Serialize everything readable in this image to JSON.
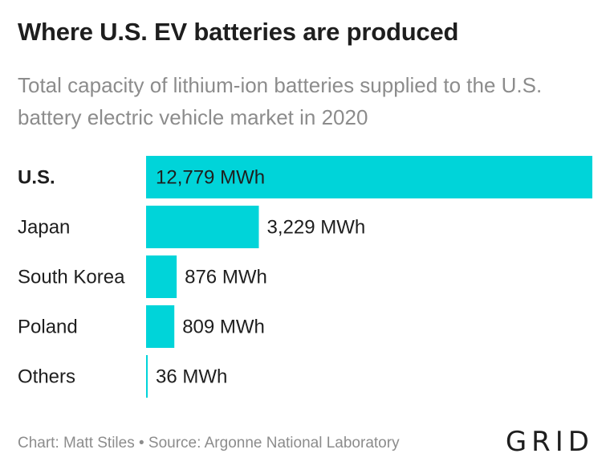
{
  "chart_data": {
    "type": "bar",
    "orientation": "horizontal",
    "title": "Where U.S. EV batteries are produced",
    "subtitle": "Total capacity of lithium-ion batteries supplied to the U.S. battery electric vehicle market in 2020",
    "categories": [
      "U.S.",
      "Japan",
      "South Korea",
      "Poland",
      "Others"
    ],
    "values": [
      12779,
      3229,
      876,
      809,
      36
    ],
    "value_labels": [
      "12,779 MWh",
      "3,229 MWh",
      "876 MWh",
      "809 MWh",
      "36 MWh"
    ],
    "unit": "MWh",
    "highlight_category": "U.S.",
    "bar_color": "#00d4d9",
    "grid": false,
    "legend": "none"
  },
  "footer": {
    "source": "Chart: Matt Stiles • Source: Argonne National Laboratory",
    "logo": "GRID"
  }
}
